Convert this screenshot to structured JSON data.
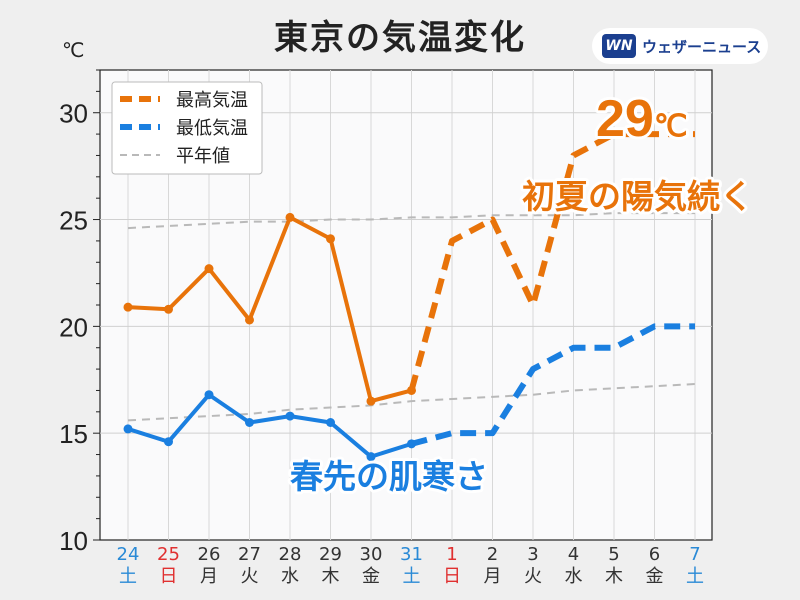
{
  "title": "東京の気温変化",
  "unit": "℃",
  "logo": {
    "mark": "WN",
    "text": "ウェザーニュース"
  },
  "annotations": {
    "peak_value": "29",
    "peak_unit": "℃",
    "peak_caption": "初夏の陽気続く",
    "low_caption": "春先の肌寒さ"
  },
  "colors": {
    "max": "#e8730a",
    "min": "#1a7fe0",
    "normal": "#b9b9b9",
    "weekday": "#333333",
    "saturday": "#2a8ad6",
    "sunday": "#e03030"
  },
  "chart_data": {
    "type": "line",
    "title": "東京の気温変化",
    "ylabel": "℃",
    "ylim": [
      10,
      32
    ],
    "yticks": [
      10,
      15,
      20,
      25,
      30
    ],
    "grid": true,
    "legend_position": "top-left",
    "categories": [
      {
        "date": "24",
        "dow": "土",
        "kind": "saturday"
      },
      {
        "date": "25",
        "dow": "日",
        "kind": "sunday"
      },
      {
        "date": "26",
        "dow": "月",
        "kind": "weekday"
      },
      {
        "date": "27",
        "dow": "火",
        "kind": "weekday"
      },
      {
        "date": "28",
        "dow": "水",
        "kind": "weekday"
      },
      {
        "date": "29",
        "dow": "木",
        "kind": "weekday"
      },
      {
        "date": "30",
        "dow": "金",
        "kind": "weekday"
      },
      {
        "date": "31",
        "dow": "土",
        "kind": "saturday"
      },
      {
        "date": "1",
        "dow": "日",
        "kind": "sunday"
      },
      {
        "date": "2",
        "dow": "月",
        "kind": "weekday"
      },
      {
        "date": "3",
        "dow": "火",
        "kind": "weekday"
      },
      {
        "date": "4",
        "dow": "水",
        "kind": "weekday"
      },
      {
        "date": "5",
        "dow": "木",
        "kind": "weekday"
      },
      {
        "date": "6",
        "dow": "金",
        "kind": "weekday"
      },
      {
        "date": "7",
        "dow": "土",
        "kind": "saturday"
      }
    ],
    "observed_count": 8,
    "series": [
      {
        "name": "最高気温",
        "key": "max",
        "values": [
          20.9,
          20.8,
          22.7,
          20.3,
          25.1,
          24.1,
          16.5,
          17.0,
          24.0,
          25.0,
          21.0,
          28.0,
          29.0,
          29.0,
          29.0
        ]
      },
      {
        "name": "最低気温",
        "key": "min",
        "values": [
          15.2,
          14.6,
          16.8,
          15.5,
          15.8,
          15.5,
          13.9,
          14.5,
          15.0,
          15.0,
          18.0,
          19.0,
          19.0,
          20.0,
          20.0
        ]
      },
      {
        "name": "平年値",
        "key": "normal_high",
        "values": [
          24.6,
          24.7,
          24.8,
          24.9,
          24.9,
          25.0,
          25.0,
          25.1,
          25.1,
          25.2,
          25.2,
          25.2,
          25.3,
          25.3,
          25.3
        ]
      },
      {
        "name": "",
        "key": "normal_low",
        "values": [
          15.6,
          15.7,
          15.8,
          15.9,
          16.1,
          16.2,
          16.3,
          16.5,
          16.6,
          16.7,
          16.8,
          17.0,
          17.1,
          17.2,
          17.3
        ]
      }
    ]
  }
}
